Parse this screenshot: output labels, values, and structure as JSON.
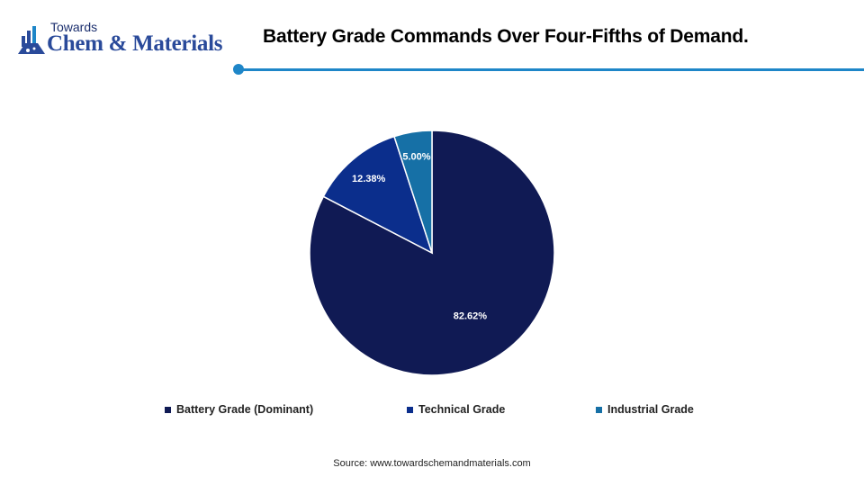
{
  "brand": {
    "top_text": "Towards",
    "main_text": "Chem & Materials",
    "accent_color": "#1e86c8"
  },
  "header": {
    "title": "Battery Grade Commands Over Four-Fifths of Demand."
  },
  "chart_data": {
    "type": "pie",
    "title": "Battery Grade Commands Over Four-Fifths of Demand.",
    "legend_position": "bottom",
    "slices": [
      {
        "name": "Battery Grade (Dominant)",
        "value": 82.62,
        "label": "82.62%",
        "color": "#101a54"
      },
      {
        "name": "Technical Grade",
        "value": 12.38,
        "label": "12.38%",
        "color": "#0b2e8c"
      },
      {
        "name": "Industrial Grade",
        "value": 5.0,
        "label": "5.00%",
        "color": "#1670a6"
      }
    ]
  },
  "footer": {
    "source": "Source: www.towardschemandmaterials.com"
  }
}
